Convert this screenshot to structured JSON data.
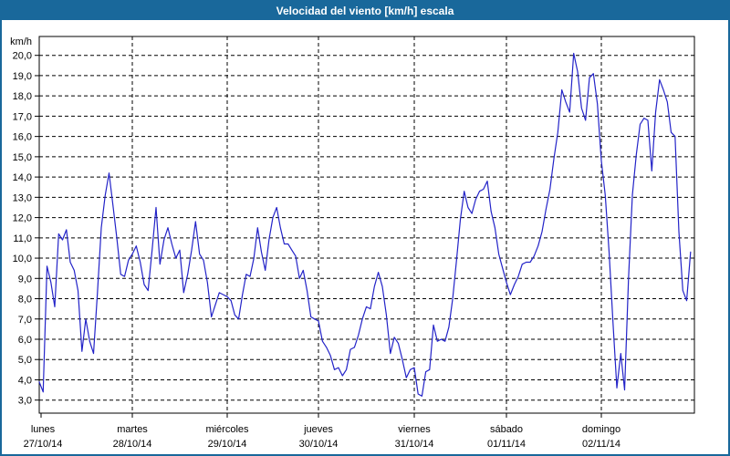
{
  "window": {
    "title": "Velocidad del viento [km/h] escala"
  },
  "colors": {
    "titlebar_bg": "#19689b",
    "titlebar_text": "#ffffff",
    "window_border": "#19689b",
    "plot_background": "#ffffff",
    "grid": "#000000",
    "axis": "#000000",
    "line": "#2323c8",
    "label_text": "#000000"
  },
  "chart_data": {
    "type": "line",
    "title": "Velocidad del viento [km/h] escala",
    "ylabel_unit": "km/h",
    "ylim": [
      3.0,
      20.0
    ],
    "ytick_interval": 1.0,
    "ytick_labels": [
      "20,0",
      "19,0",
      "18,0",
      "17,0",
      "16,0",
      "15,0",
      "14,0",
      "13,0",
      "12,0",
      "11,0",
      "10,0",
      "9,0",
      "8,0",
      "7,0",
      "6,0",
      "5,0",
      "4,0",
      "3,0"
    ],
    "grid": "dashed horizontal every 1 km/h, dashed vertical at each day start",
    "legend_position": "none",
    "line_color": "#2323c8",
    "x_sampling": "24 hourly values per day",
    "days": [
      {
        "label": "lunes",
        "date": "27/10/14",
        "hourly_values": [
          3.9,
          3.4,
          9.6,
          8.8,
          7.6,
          11.2,
          10.9,
          11.4,
          9.8,
          9.4,
          8.4,
          5.4,
          7.0,
          5.9,
          5.3,
          8.3,
          11.5,
          13.1,
          14.2,
          12.6,
          11.0,
          9.2,
          9.1,
          9.9
        ]
      },
      {
        "label": "martes",
        "date": "28/10/14",
        "hourly_values": [
          10.2,
          10.6,
          9.8,
          8.7,
          8.4,
          10.4,
          12.5,
          9.7,
          10.9,
          11.5,
          10.7,
          10.0,
          10.4,
          8.3,
          9.2,
          10.4,
          11.8,
          10.2,
          9.9,
          8.8,
          7.1,
          7.7,
          8.3,
          8.2
        ]
      },
      {
        "label": "miércoles",
        "date": "29/10/14",
        "hourly_values": [
          8.1,
          7.9,
          7.2,
          7.0,
          8.2,
          9.2,
          9.1,
          10.0,
          11.5,
          10.3,
          9.4,
          10.9,
          12.0,
          12.5,
          11.5,
          10.7,
          10.7,
          10.4,
          10.1,
          9.0,
          9.4,
          8.4,
          7.1,
          7.0
        ]
      },
      {
        "label": "jueves",
        "date": "30/10/14",
        "hourly_values": [
          6.9,
          5.9,
          5.6,
          5.2,
          4.5,
          4.6,
          4.2,
          4.5,
          5.5,
          5.6,
          6.2,
          7.0,
          7.6,
          7.5,
          8.6,
          9.3,
          8.6,
          7.2,
          5.3,
          6.1,
          5.8,
          5.0,
          4.1,
          4.5
        ]
      },
      {
        "label": "viernes",
        "date": "31/10/14",
        "hourly_values": [
          4.6,
          3.3,
          3.2,
          4.4,
          4.5,
          6.7,
          5.9,
          6.0,
          5.9,
          6.6,
          8.0,
          9.9,
          11.9,
          13.3,
          12.5,
          12.2,
          12.9,
          13.3,
          13.4,
          13.8,
          12.3,
          11.5,
          10.2,
          9.5
        ]
      },
      {
        "label": "sábado",
        "date": "01/11/14",
        "hourly_values": [
          8.8,
          8.2,
          8.7,
          9.1,
          9.7,
          9.8,
          9.8,
          10.1,
          10.6,
          11.3,
          12.4,
          13.4,
          14.9,
          16.2,
          18.3,
          17.7,
          17.2,
          20.1,
          19.2,
          17.4,
          16.8,
          18.9,
          19.1,
          17.6
        ]
      },
      {
        "label": "domingo",
        "date": "02/11/14",
        "hourly_values": [
          14.8,
          13.1,
          10.3,
          6.8,
          3.6,
          5.3,
          3.5,
          9.0,
          13.1,
          15.1,
          16.6,
          16.9,
          16.8,
          14.3,
          17.2,
          18.8,
          18.3,
          17.7,
          16.2,
          16.0,
          11.3,
          8.4,
          7.9,
          10.3
        ]
      }
    ]
  }
}
